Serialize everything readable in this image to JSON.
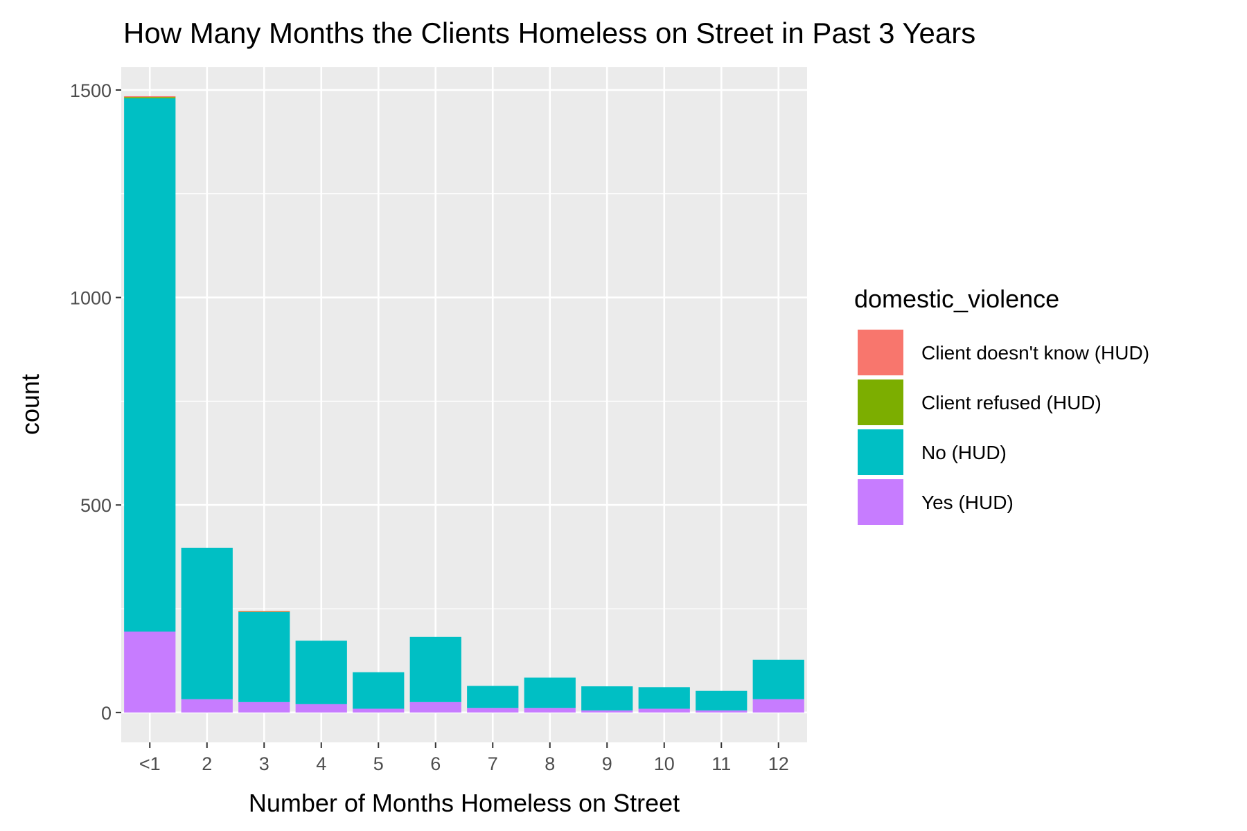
{
  "chart_data": {
    "type": "bar",
    "stacked": true,
    "title": "How Many Months the Clients Homeless on Street in Past 3 Years",
    "xlabel": "Number of Months Homeless on Street",
    "ylabel": "count",
    "categories": [
      "<1",
      "2",
      "3",
      "4",
      "5",
      "6",
      "7",
      "8",
      "9",
      "10",
      "11",
      "12"
    ],
    "ylim": [
      -72,
      1555
    ],
    "yticks": [
      0,
      500,
      1000,
      1500
    ],
    "grid": true,
    "legend": {
      "title": "domestic_violence",
      "placement": "right"
    },
    "series": [
      {
        "name": "Client doesn't know (HUD)",
        "color": "#F8766D",
        "values": [
          2,
          0,
          2,
          0,
          0,
          0,
          0,
          0,
          0,
          0,
          0,
          0
        ]
      },
      {
        "name": "Client refused (HUD)",
        "color": "#7CAE00",
        "values": [
          3,
          0,
          1,
          0,
          0,
          0,
          0,
          0,
          0,
          0,
          0,
          0
        ]
      },
      {
        "name": "No (HUD)",
        "color": "#00BFC4",
        "values": [
          1285,
          365,
          217,
          153,
          88,
          157,
          53,
          73,
          58,
          52,
          47,
          95
        ]
      },
      {
        "name": "Yes (HUD)",
        "color": "#C77CFF",
        "values": [
          195,
          32,
          25,
          20,
          9,
          25,
          11,
          11,
          5,
          9,
          5,
          32
        ]
      }
    ]
  }
}
